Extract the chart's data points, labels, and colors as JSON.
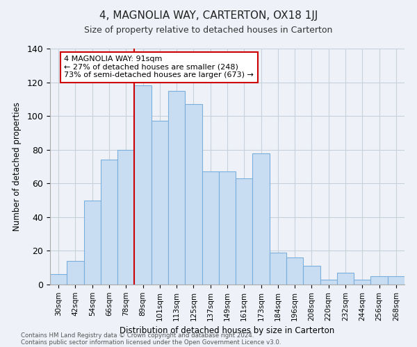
{
  "title": "4, MAGNOLIA WAY, CARTERTON, OX18 1JJ",
  "subtitle": "Size of property relative to detached houses in Carterton",
  "xlabel": "Distribution of detached houses by size in Carterton",
  "ylabel": "Number of detached properties",
  "bar_labels": [
    "30sqm",
    "42sqm",
    "54sqm",
    "66sqm",
    "78sqm",
    "89sqm",
    "101sqm",
    "113sqm",
    "125sqm",
    "137sqm",
    "149sqm",
    "161sqm",
    "173sqm",
    "184sqm",
    "196sqm",
    "208sqm",
    "220sqm",
    "232sqm",
    "244sqm",
    "256sqm",
    "268sqm"
  ],
  "bar_heights": [
    6,
    14,
    50,
    74,
    80,
    118,
    97,
    115,
    107,
    67,
    67,
    63,
    78,
    19,
    16,
    11,
    3,
    7,
    3,
    5,
    5
  ],
  "bar_color": "#c9ddf2",
  "bar_edge_color": "#7aaedd",
  "bar_width": 1.0,
  "vline_x": 5.0,
  "vline_color": "#cc0000",
  "ylim": [
    0,
    140
  ],
  "yticks": [
    0,
    20,
    40,
    60,
    80,
    100,
    120,
    140
  ],
  "annotation_title": "4 MAGNOLIA WAY: 91sqm",
  "annotation_line1": "← 27% of detached houses are smaller (248)",
  "annotation_line2": "73% of semi-detached houses are larger (673) →",
  "annotation_box_color": "#ffffff",
  "annotation_box_edge": "#cc0000",
  "grid_color": "#c8d0dc",
  "bg_color": "#eef2f8",
  "footer1": "Contains HM Land Registry data © Crown copyright and database right 2024.",
  "footer2": "Contains public sector information licensed under the Open Government Licence v3.0."
}
